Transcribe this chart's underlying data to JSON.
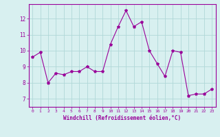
{
  "x": [
    0,
    1,
    2,
    3,
    4,
    5,
    6,
    7,
    8,
    9,
    10,
    11,
    12,
    13,
    14,
    15,
    16,
    17,
    18,
    19,
    20,
    21,
    22,
    23
  ],
  "y": [
    9.6,
    9.9,
    8.0,
    8.6,
    8.5,
    8.7,
    8.7,
    9.0,
    8.7,
    8.7,
    10.4,
    11.5,
    12.5,
    11.5,
    11.8,
    10.0,
    9.2,
    8.4,
    10.0,
    9.9,
    7.2,
    7.3,
    7.3,
    7.6
  ],
  "line_color": "#990099",
  "marker": "*",
  "marker_size": 3,
  "bg_color": "#d8f0f0",
  "grid_color": "#b0d8d8",
  "xlabel": "Windchill (Refroidissement éolien,°C)",
  "tick_color": "#990099",
  "ylim": [
    6.5,
    12.9
  ],
  "xlim": [
    -0.5,
    23.5
  ],
  "yticks": [
    7,
    8,
    9,
    10,
    11,
    12
  ],
  "xticks": [
    0,
    1,
    2,
    3,
    4,
    5,
    6,
    7,
    8,
    9,
    10,
    11,
    12,
    13,
    14,
    15,
    16,
    17,
    18,
    19,
    20,
    21,
    22,
    23
  ],
  "xtick_labels": [
    "0",
    "1",
    "2",
    "3",
    "4",
    "5",
    "6",
    "7",
    "8",
    "9",
    "10",
    "11",
    "12",
    "13",
    "14",
    "15",
    "16",
    "17",
    "18",
    "19",
    "20",
    "21",
    "22",
    "23"
  ]
}
